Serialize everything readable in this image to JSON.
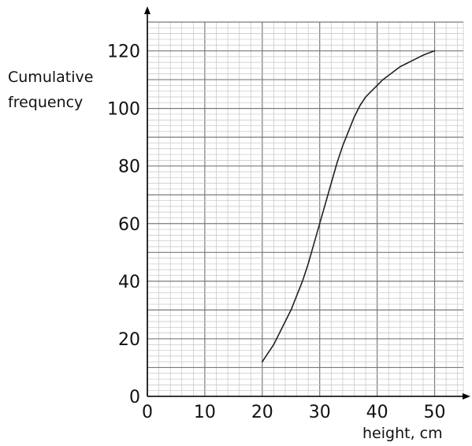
{
  "chart_data": {
    "type": "line",
    "title": "",
    "xlabel": "height, cm",
    "ylabel_lines": [
      "Cumulative",
      "frequency"
    ],
    "xlim": [
      0,
      55
    ],
    "ylim": [
      0,
      130
    ],
    "x_ticks": [
      0,
      10,
      20,
      30,
      40,
      50
    ],
    "y_ticks": [
      0,
      20,
      40,
      60,
      80,
      100,
      120
    ],
    "grid": true,
    "minor_grid_step": 2,
    "major_grid_step": 10,
    "series": [
      {
        "color": "#222222",
        "x": [
          20,
          21,
          22,
          23,
          24,
          25,
          26,
          27,
          28,
          29,
          30,
          31,
          32,
          33,
          34,
          35,
          36,
          37,
          38,
          39,
          40,
          41,
          42,
          43,
          44,
          45,
          46,
          47,
          48,
          49,
          50
        ],
        "y": [
          12,
          15,
          18,
          22,
          26,
          30,
          35,
          40,
          46,
          53,
          60,
          67,
          74,
          81,
          87,
          92,
          97,
          101,
          104,
          106,
          108,
          110,
          111.5,
          113,
          114.5,
          115.5,
          116.5,
          117.5,
          118.5,
          119.3,
          120
        ]
      }
    ]
  }
}
